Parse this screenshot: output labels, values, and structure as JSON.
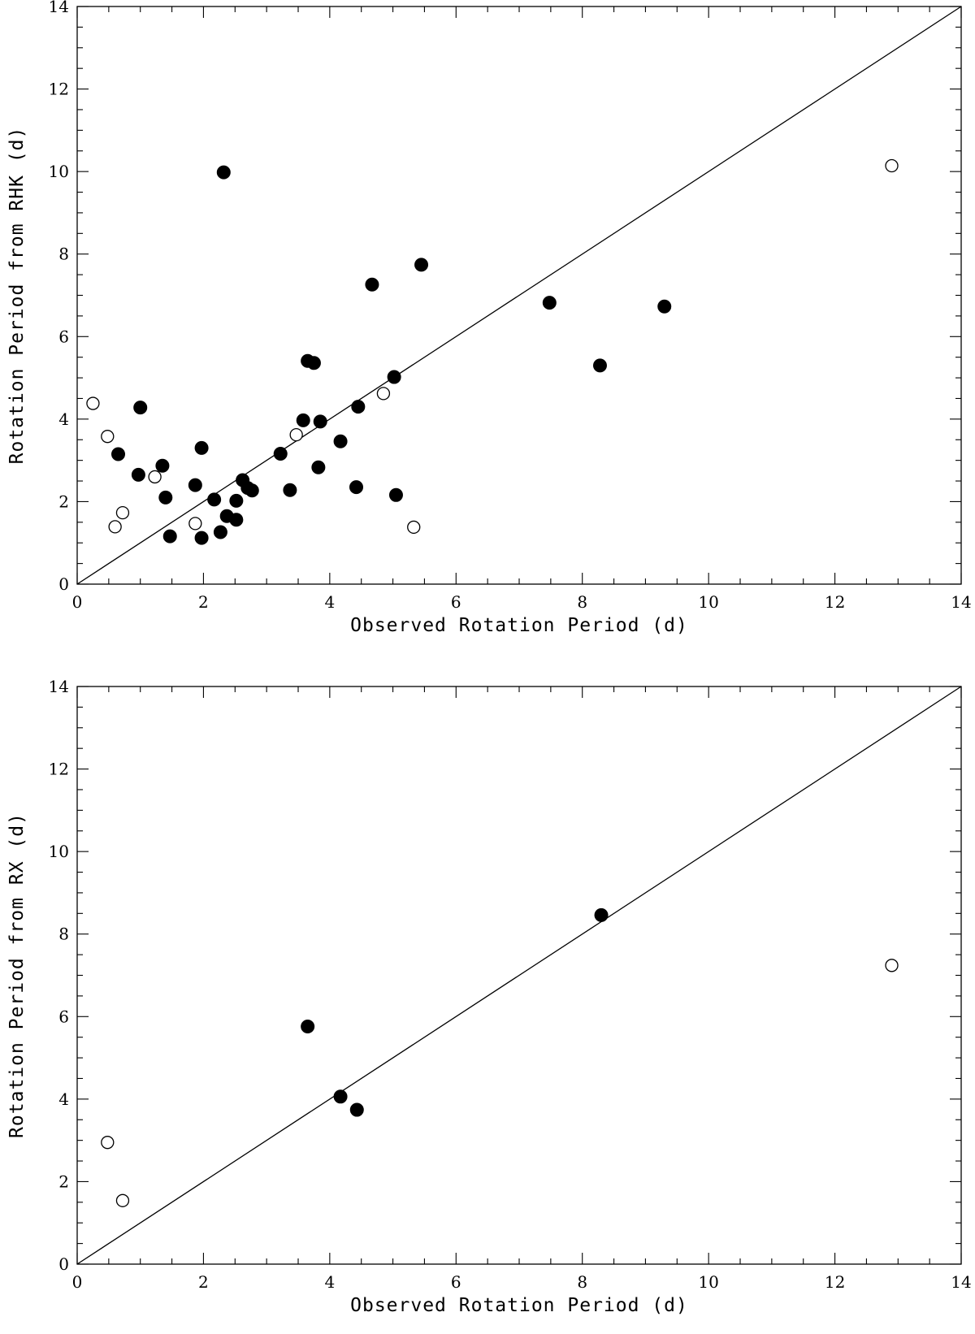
{
  "chart_data": [
    {
      "type": "scatter",
      "title": "",
      "xlabel": "Observed Rotation Period (d)",
      "ylabel": "Rotation Period from RHK (d)",
      "xlim": [
        0,
        14
      ],
      "ylim": [
        0,
        14
      ],
      "xticks": [
        "0",
        "2",
        "4",
        "6",
        "8",
        "10",
        "12",
        "14"
      ],
      "yticks": [
        "0",
        "2",
        "4",
        "6",
        "8",
        "10",
        "12",
        "14"
      ],
      "reference_line": {
        "name": "one-to-one",
        "x": [
          0,
          14
        ],
        "y": [
          0,
          14
        ]
      },
      "series": [
        {
          "name": "filled",
          "marker": "filled-circle",
          "color": "#000000",
          "points": [
            [
              0.65,
              3.15
            ],
            [
              0.97,
              2.65
            ],
            [
              1.0,
              4.28
            ],
            [
              1.35,
              2.87
            ],
            [
              1.4,
              2.1
            ],
            [
              1.47,
              1.16
            ],
            [
              1.87,
              2.4
            ],
            [
              1.97,
              3.3
            ],
            [
              1.97,
              1.12
            ],
            [
              2.17,
              2.05
            ],
            [
              2.27,
              1.26
            ],
            [
              2.32,
              9.98
            ],
            [
              2.37,
              1.65
            ],
            [
              2.52,
              1.56
            ],
            [
              2.52,
              2.02
            ],
            [
              2.62,
              2.52
            ],
            [
              2.7,
              2.33
            ],
            [
              2.77,
              2.27
            ],
            [
              3.22,
              3.16
            ],
            [
              3.37,
              2.28
            ],
            [
              3.58,
              3.97
            ],
            [
              3.65,
              5.41
            ],
            [
              3.75,
              5.36
            ],
            [
              3.82,
              2.83
            ],
            [
              3.85,
              3.94
            ],
            [
              4.17,
              3.46
            ],
            [
              4.42,
              2.35
            ],
            [
              4.45,
              4.3
            ],
            [
              4.67,
              7.26
            ],
            [
              5.02,
              5.02
            ],
            [
              5.05,
              2.16
            ],
            [
              5.45,
              7.74
            ],
            [
              7.48,
              6.82
            ],
            [
              8.28,
              5.3
            ],
            [
              9.3,
              6.73
            ]
          ]
        },
        {
          "name": "open",
          "marker": "open-circle",
          "color": "#000000",
          "points": [
            [
              0.25,
              4.38
            ],
            [
              0.48,
              3.58
            ],
            [
              0.6,
              1.39
            ],
            [
              0.72,
              1.73
            ],
            [
              1.23,
              2.6
            ],
            [
              1.87,
              1.47
            ],
            [
              3.47,
              3.62
            ],
            [
              4.85,
              4.62
            ],
            [
              5.33,
              1.38
            ],
            [
              12.9,
              10.14
            ]
          ]
        }
      ]
    },
    {
      "type": "scatter",
      "title": "",
      "xlabel": "Observed Rotation Period (d)",
      "ylabel": "Rotation Period from RX (d)",
      "xlim": [
        0,
        14
      ],
      "ylim": [
        0,
        14
      ],
      "xticks": [
        "0",
        "2",
        "4",
        "6",
        "8",
        "10",
        "12",
        "14"
      ],
      "yticks": [
        "0",
        "2",
        "4",
        "6",
        "8",
        "10",
        "12",
        "14"
      ],
      "reference_line": {
        "name": "one-to-one",
        "x": [
          0,
          14
        ],
        "y": [
          0,
          14
        ]
      },
      "series": [
        {
          "name": "filled",
          "marker": "filled-circle",
          "color": "#000000",
          "points": [
            [
              3.65,
              5.76
            ],
            [
              4.17,
              4.06
            ],
            [
              4.43,
              3.74
            ],
            [
              8.3,
              8.46
            ]
          ]
        },
        {
          "name": "open",
          "marker": "open-circle",
          "color": "#000000",
          "points": [
            [
              0.48,
              2.95
            ],
            [
              0.72,
              1.54
            ],
            [
              12.9,
              7.24
            ]
          ]
        }
      ]
    }
  ]
}
